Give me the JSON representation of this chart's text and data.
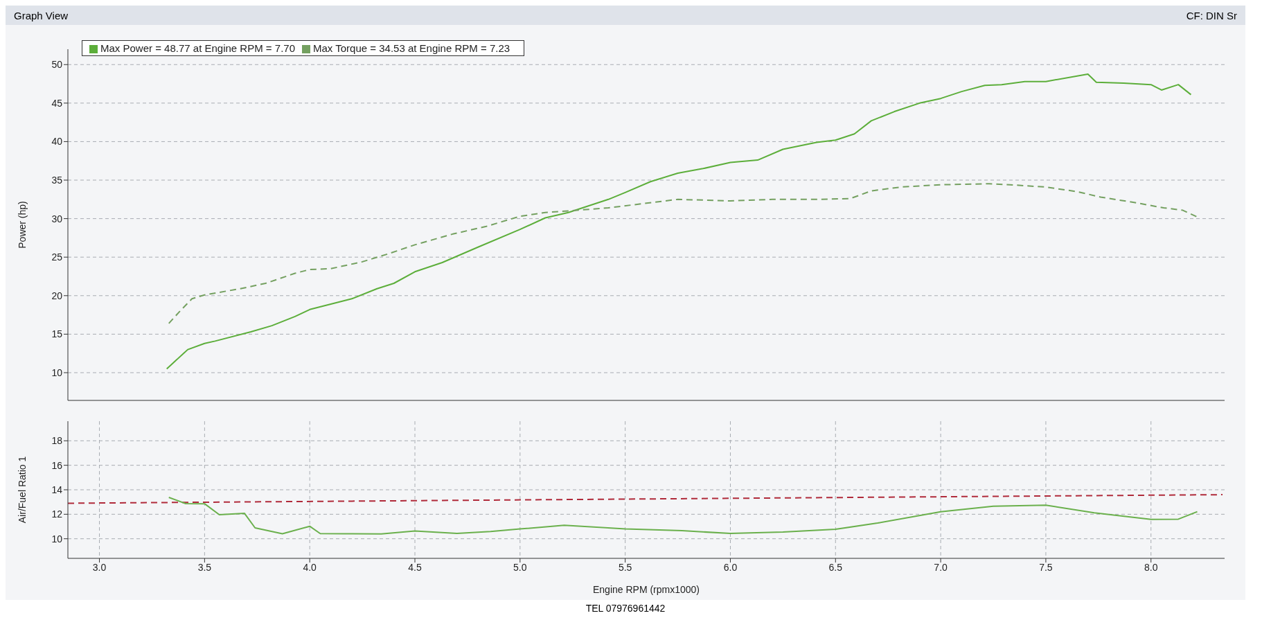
{
  "chart_data": [
    {
      "type": "line",
      "ylabel": "Power (hp)",
      "annotations": [
        "Graph View",
        "CF: DIN Sr"
      ],
      "xlim": [
        2.85,
        8.35
      ],
      "xticks": [
        {
          "value": 3,
          "label": null
        },
        {
          "value": 3.5,
          "label": null
        },
        {
          "value": 4,
          "label": null
        },
        {
          "value": 4.5,
          "label": null
        },
        {
          "value": 5,
          "label": null
        },
        {
          "value": 5.5,
          "label": null
        },
        {
          "value": 6,
          "label": null
        },
        {
          "value": 6.5,
          "label": null
        },
        {
          "value": 7,
          "label": null
        },
        {
          "value": 7.5,
          "label": null
        },
        {
          "value": 8,
          "label": null
        }
      ],
      "ylim": [
        6.4,
        52
      ],
      "yticks": [
        10,
        15,
        20,
        25,
        30,
        35,
        40,
        45,
        50
      ],
      "tick_labels": "y",
      "grid": true,
      "legend": "top left",
      "marker": "none",
      "series": [
        {
          "name": "Max Power = 48.77 at Engine RPM = 7.70",
          "color": "#5cae3a",
          "line_style": "solid",
          "x": [
            3.32,
            3.42,
            3.5,
            3.55,
            3.72,
            3.82,
            3.93,
            4.0,
            4.2,
            4.32,
            4.4,
            4.5,
            4.63,
            4.8,
            5.0,
            5.12,
            5.23,
            5.42,
            5.5,
            5.62,
            5.75,
            5.87,
            6.0,
            6.13,
            6.25,
            6.41,
            6.5,
            6.59,
            6.67,
            6.78,
            6.9,
            7.0,
            7.1,
            7.21,
            7.29,
            7.4,
            7.5,
            7.7,
            7.74,
            7.87,
            8.0,
            8.05,
            8.13,
            8.19
          ],
          "values": [
            10.5,
            13,
            13.8,
            14.1,
            15.3,
            16.1,
            17.3,
            18.2,
            19.6,
            20.9,
            21.6,
            23.1,
            24.3,
            26.3,
            28.6,
            30.1,
            30.8,
            32.5,
            33.4,
            34.8,
            35.9,
            36.5,
            37.3,
            37.6,
            39.0,
            39.9,
            40.2,
            41.0,
            42.7,
            43.9,
            45.0,
            45.6,
            46.5,
            47.3,
            47.4,
            47.8,
            47.8,
            48.77,
            47.7,
            47.6,
            47.4,
            46.7,
            47.4,
            46.1
          ]
        },
        {
          "name": "Max Torque = 34.53 at Engine RPM = 7.23",
          "color": "#74a060",
          "line_style": "dashed",
          "x": [
            3.33,
            3.38,
            3.44,
            3.5,
            3.67,
            3.79,
            3.93,
            4.0,
            4.1,
            4.25,
            4.37,
            4.5,
            4.68,
            4.84,
            5.0,
            5.12,
            5.23,
            5.42,
            5.54,
            5.75,
            6.0,
            6.2,
            6.41,
            6.57,
            6.67,
            6.81,
            7.0,
            7.23,
            7.33,
            7.5,
            7.65,
            7.76,
            7.92,
            8.06,
            8.15,
            8.23
          ],
          "values": [
            16.4,
            17.9,
            19.6,
            20.1,
            20.9,
            21.6,
            22.9,
            23.4,
            23.5,
            24.4,
            25.4,
            26.6,
            28.0,
            29.0,
            30.3,
            30.8,
            31.0,
            31.4,
            31.8,
            32.5,
            32.3,
            32.5,
            32.5,
            32.6,
            33.6,
            34.1,
            34.4,
            34.53,
            34.4,
            34.1,
            33.5,
            32.8,
            32.1,
            31.4,
            31.1,
            30.1
          ]
        }
      ]
    },
    {
      "type": "line",
      "ylabel": "Air/Fuel Ratio 1",
      "xlabel": "Engine RPM (rpmx1000)",
      "annotations": [
        "TEL 07976961442"
      ],
      "xlim": [
        2.85,
        8.35
      ],
      "xticks": [
        {
          "value": 3,
          "label": "3.0"
        },
        3.5,
        {
          "value": 4,
          "label": "4.0"
        },
        4.5,
        {
          "value": 5,
          "label": "5.0"
        },
        5.5,
        {
          "value": 6,
          "label": "6.0"
        },
        6.5,
        {
          "value": 7,
          "label": "7.0"
        },
        7.5,
        {
          "value": 8,
          "label": "8.0"
        }
      ],
      "ylim": [
        8.4,
        19.6
      ],
      "yticks": [
        10,
        12,
        14,
        16,
        18
      ],
      "grid": true,
      "marker": "none",
      "series": [
        {
          "color": "#b02a3a",
          "line_style": "dashed",
          "x": [
            2.85,
            8.34
          ],
          "values": [
            12.9,
            13.6
          ]
        },
        {
          "color": "#6ab04c",
          "line_style": "solid",
          "x": [
            3.33,
            3.41,
            3.5,
            3.57,
            3.69,
            3.74,
            3.87,
            4.0,
            4.05,
            4.17,
            4.34,
            4.5,
            4.7,
            4.86,
            5.0,
            5.21,
            5.5,
            5.77,
            6.0,
            6.25,
            6.5,
            6.7,
            7.0,
            7.25,
            7.5,
            7.73,
            8.0,
            8.13,
            8.22
          ],
          "values": [
            13.38,
            12.87,
            12.86,
            11.96,
            12.07,
            10.89,
            10.41,
            11.02,
            10.42,
            10.41,
            10.39,
            10.64,
            10.44,
            10.59,
            10.8,
            11.1,
            10.81,
            10.66,
            10.43,
            10.55,
            10.77,
            11.28,
            12.21,
            12.65,
            12.74,
            12.12,
            11.58,
            11.6,
            12.21
          ]
        }
      ]
    }
  ]
}
